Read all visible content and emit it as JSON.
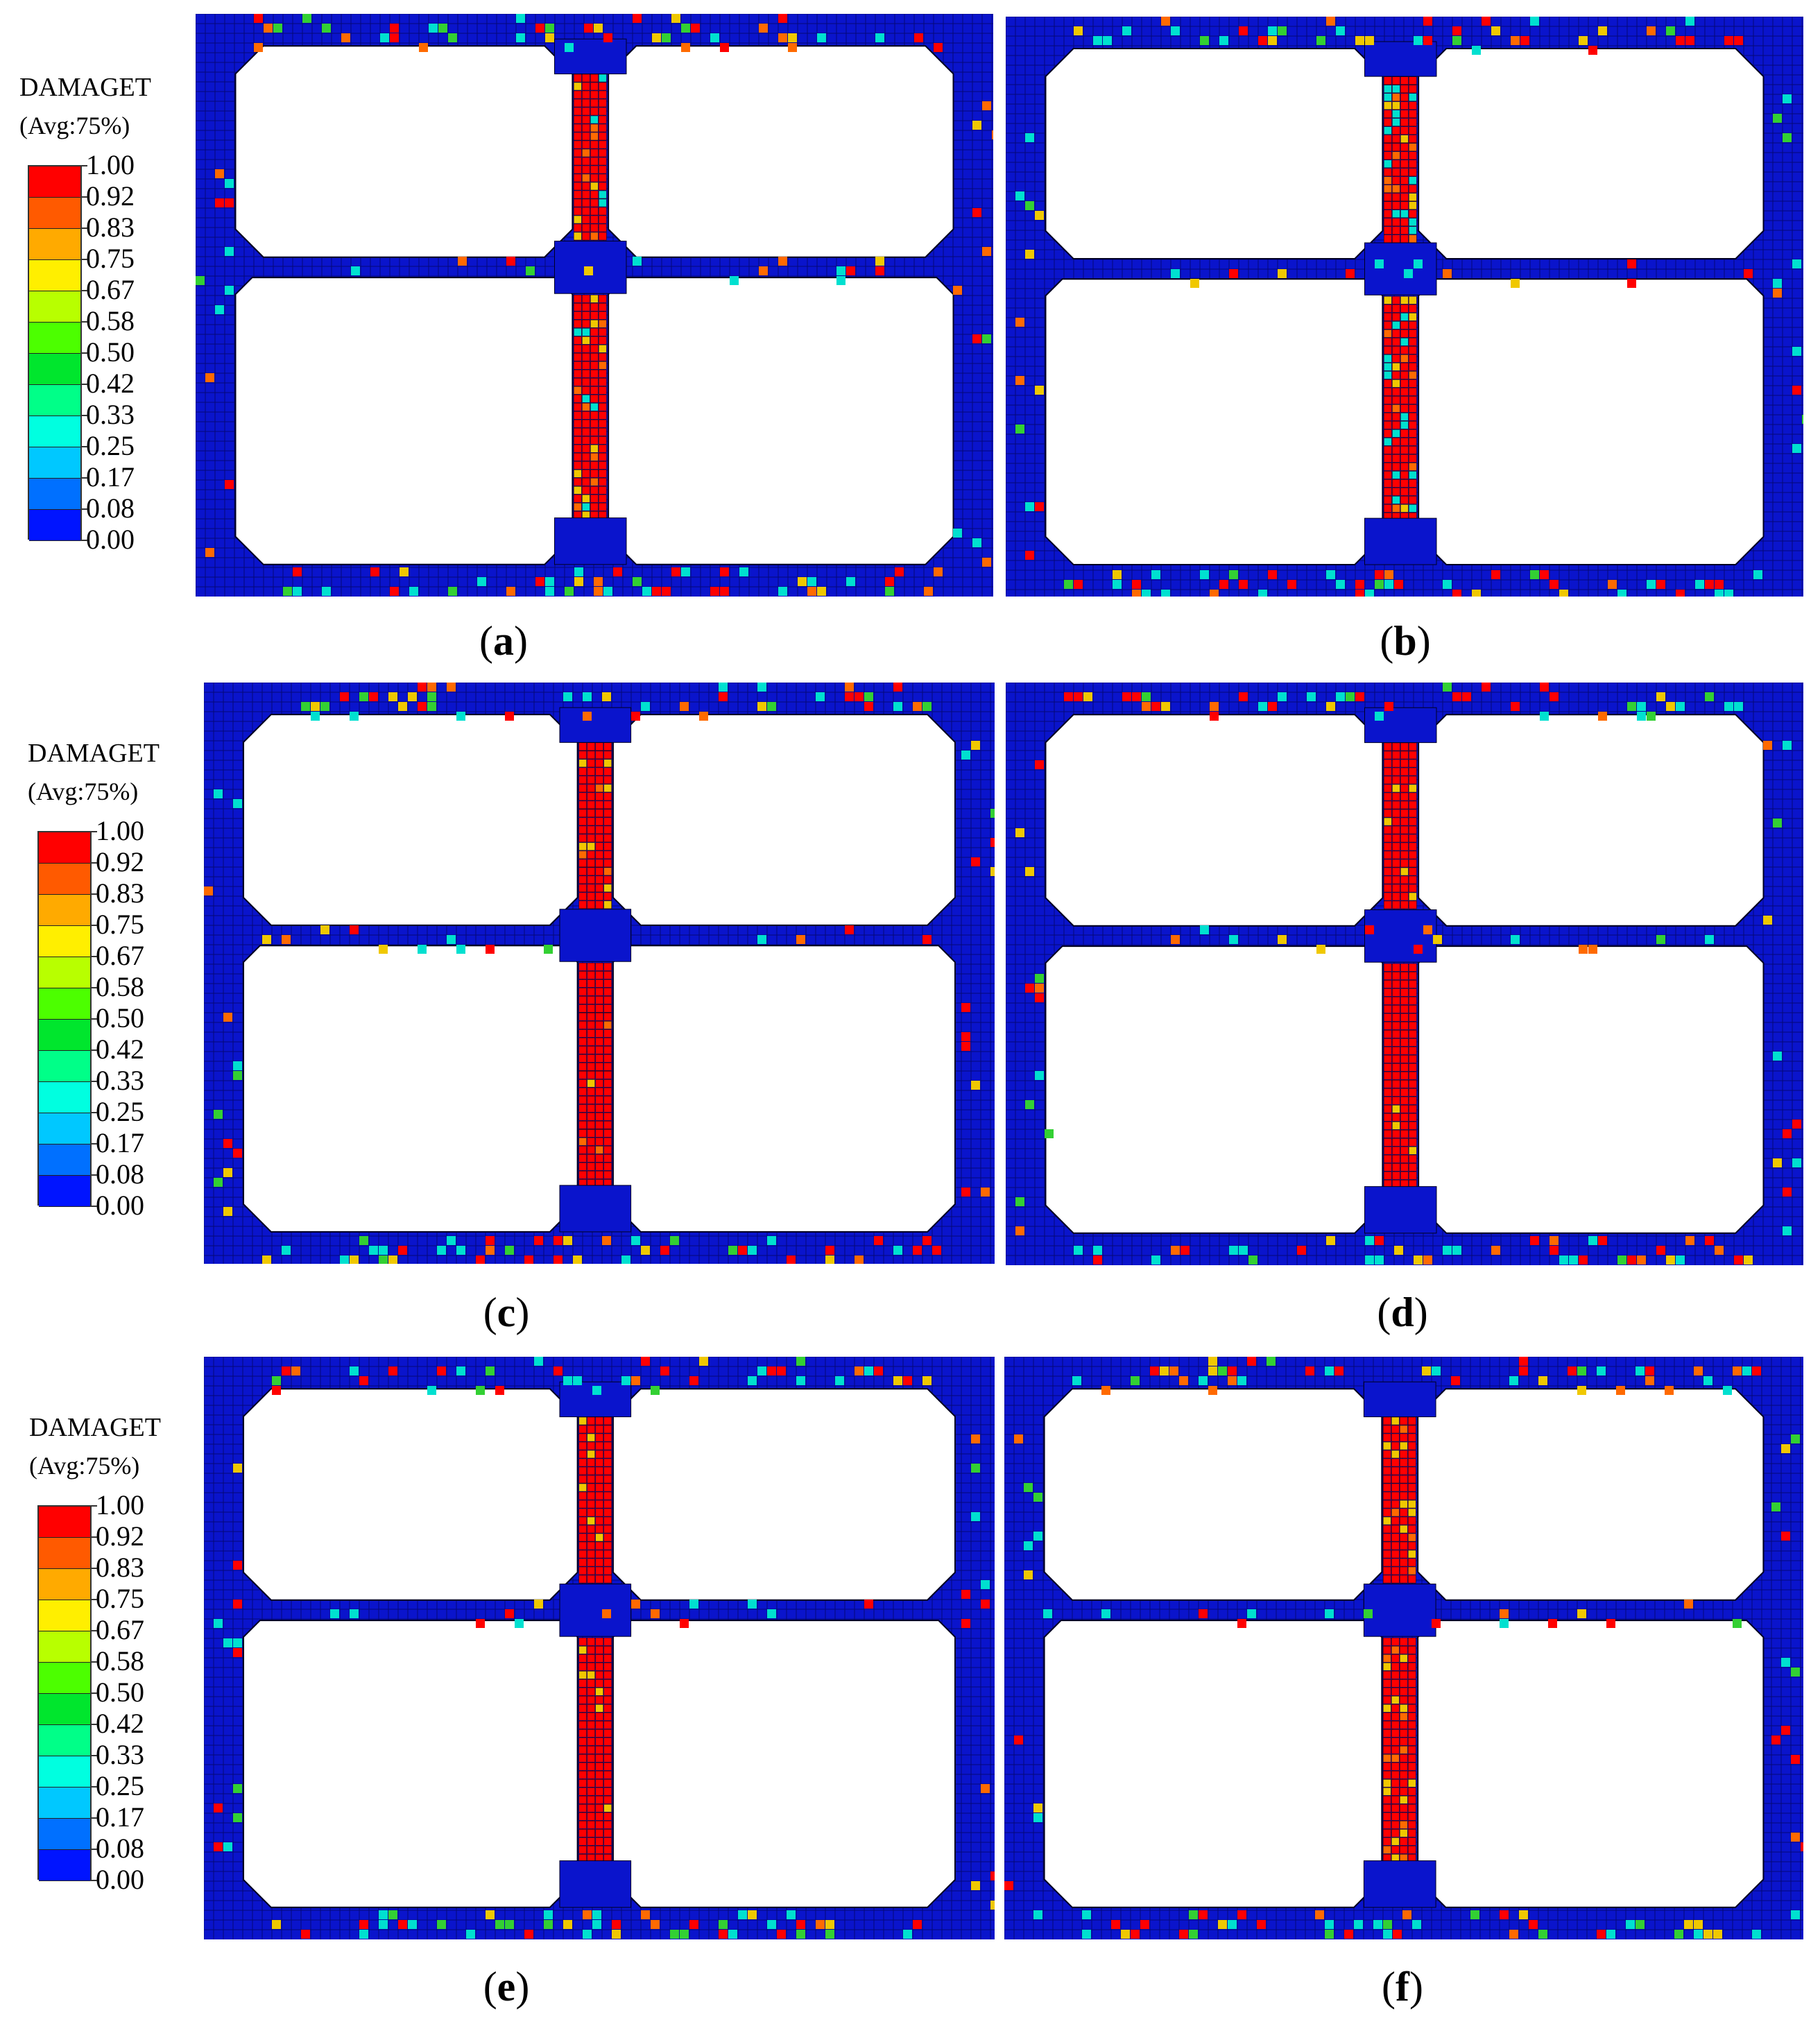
{
  "legend": {
    "title": "DAMAGET",
    "subtitle": "(Avg:75%)",
    "ticks": [
      "1.00",
      "0.92",
      "0.83",
      "0.75",
      "0.67",
      "0.58",
      "0.50",
      "0.42",
      "0.33",
      "0.25",
      "0.17",
      "0.08",
      "0.00"
    ],
    "colors": [
      "#ff0000",
      "#ff5a00",
      "#ffaa00",
      "#ffef00",
      "#b8ff00",
      "#4cff00",
      "#00e62d",
      "#00ff88",
      "#00ffe0",
      "#00c8ff",
      "#0070ff",
      "#0014ff"
    ]
  },
  "captions": {
    "a": "a",
    "b": "b",
    "c": "c",
    "d": "d",
    "e": "e",
    "f": "f"
  },
  "colors": {
    "frame": "#0a14cc",
    "mesh": "#000033",
    "damage_high": "#ff0000",
    "damage_orange": "#ff6a00",
    "damage_yellow": "#f0c800",
    "damage_cyan": "#00e0d0",
    "damage_green": "#33d033"
  }
}
